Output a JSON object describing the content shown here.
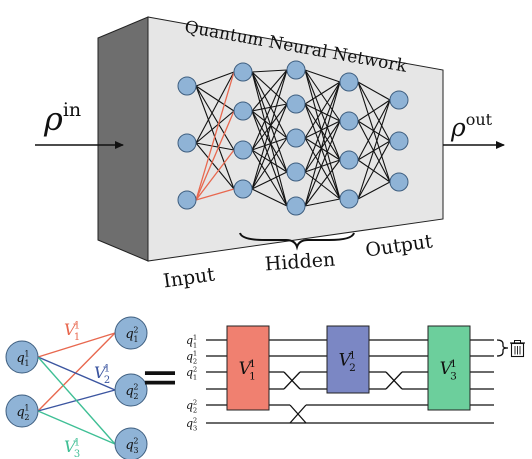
{
  "top": {
    "title": "Quantum Neural Network",
    "rho_symbol": "ρ",
    "rho_in_sup": "in",
    "rho_out_sup": "out",
    "label_input": "Input",
    "label_hidden": "Hidden",
    "label_output": "Output",
    "layers": [
      3,
      4,
      5,
      4,
      3
    ],
    "colors": {
      "box_front": "#e6e6e6",
      "box_side": "#6e6e6e",
      "node_fill": "#8fb3d6",
      "node_stroke": "#3f5f80",
      "highlight_edge": "#e8684f",
      "edge": "#111111"
    }
  },
  "bottom": {
    "equals": "=",
    "qubit_left": [
      {
        "name": "q",
        "sub": "1",
        "sup": "1"
      },
      {
        "name": "q",
        "sub": "2",
        "sup": "1"
      }
    ],
    "qubit_right": [
      {
        "name": "q",
        "sub": "1",
        "sup": "2"
      },
      {
        "name": "q",
        "sub": "2",
        "sup": "2"
      },
      {
        "name": "q",
        "sub": "3",
        "sup": "2"
      }
    ],
    "edge_labels": [
      {
        "name": "V",
        "sub": "1",
        "sup": "1",
        "color": "#e8684f"
      },
      {
        "name": "V",
        "sub": "2",
        "sup": "1",
        "color": "#3b55a0"
      },
      {
        "name": "V",
        "sub": "3",
        "sup": "1",
        "color": "#3fbf95"
      }
    ],
    "wire_labels": [
      {
        "name": "q",
        "sub": "1",
        "sup": "1"
      },
      {
        "name": "q",
        "sub": "2",
        "sup": "1"
      },
      {
        "name": "q",
        "sub": "1",
        "sup": "2"
      },
      {
        "name": "q",
        "sub": "2",
        "sup": "2"
      },
      {
        "name": "q",
        "sub": "3",
        "sup": "2"
      }
    ],
    "gates": [
      {
        "name": "V",
        "sub": "1",
        "sup": "1",
        "color": "#f08070"
      },
      {
        "name": "V",
        "sub": "2",
        "sup": "1",
        "color": "#7b87c4"
      },
      {
        "name": "V",
        "sub": "3",
        "sup": "1",
        "color": "#6ccf9c"
      }
    ],
    "trash_icon": "trash-icon"
  }
}
